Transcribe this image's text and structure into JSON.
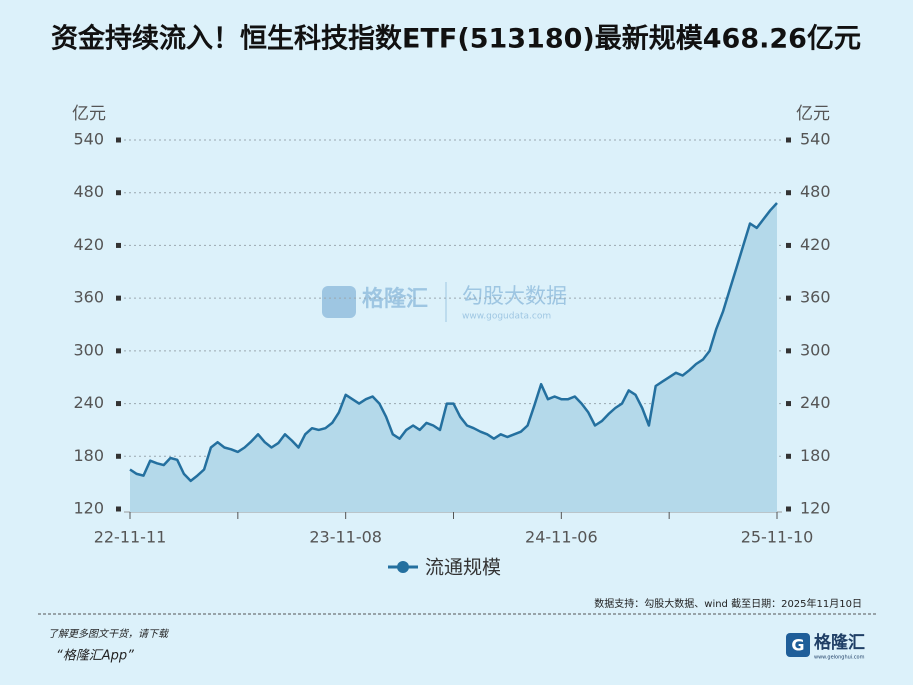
{
  "chart_data": {
    "type": "line",
    "title": "资金持续流入！恒生科技指数ETF(513180)最新规模468.26亿元",
    "y_unit": "亿元",
    "categories": [
      "22-11-11",
      null,
      null,
      null,
      null,
      null,
      null,
      null,
      null,
      null,
      null,
      null,
      null,
      null,
      null,
      null,
      null,
      null,
      null,
      null,
      null,
      null,
      null,
      null,
      null,
      null,
      null,
      null,
      null,
      null,
      null,
      null,
      "23-11-08",
      null,
      null,
      null,
      null,
      null,
      null,
      null,
      null,
      null,
      null,
      null,
      null,
      null,
      null,
      null,
      null,
      null,
      null,
      null,
      null,
      null,
      null,
      null,
      null,
      null,
      null,
      null,
      null,
      null,
      null,
      null,
      "24-11-06",
      null,
      null,
      null,
      null,
      null,
      null,
      null,
      null,
      null,
      null,
      null,
      null,
      null,
      null,
      null,
      null,
      null,
      null,
      null,
      null,
      null,
      null,
      null,
      null,
      null,
      null,
      null,
      null,
      null,
      null,
      null,
      "25-11-10"
    ],
    "series": [
      {
        "name": "流通规模",
        "color": "#24709f",
        "fill": "#b4d9ea",
        "values": [
          165,
          160,
          158,
          175,
          172,
          170,
          178,
          176,
          160,
          152,
          158,
          165,
          190,
          196,
          190,
          188,
          185,
          190,
          197,
          205,
          196,
          190,
          195,
          205,
          198,
          190,
          205,
          212,
          210,
          212,
          218,
          230,
          250,
          245,
          240,
          245,
          248,
          240,
          225,
          205,
          200,
          210,
          215,
          210,
          218,
          215,
          210,
          240,
          240,
          225,
          215,
          212,
          208,
          205,
          200,
          205,
          202,
          205,
          208,
          215,
          238,
          262,
          245,
          248,
          245,
          245,
          248,
          240,
          230,
          215,
          220,
          228,
          235,
          240,
          255,
          250,
          235,
          215,
          260,
          265,
          270,
          275,
          272,
          278,
          285,
          290,
          300,
          325,
          345,
          370,
          395,
          420,
          445,
          440,
          450,
          460,
          468.26
        ]
      }
    ],
    "ylim": [
      120,
      540
    ],
    "yticks": [
      120,
      180,
      240,
      300,
      360,
      420,
      480,
      540
    ],
    "grid": true
  },
  "watermark": {
    "brand": "格隆汇",
    "site_brand": "勾股大数据",
    "url": "www.gogudata.com"
  },
  "source": "数据支持：勾股大数据、wind  截至日期：2025年11月10日",
  "footer": {
    "promo": "了解更多图文干货，请下载",
    "app": "“格隆汇App”",
    "logo": "格隆汇",
    "logo_url": "www.gelonghui.com"
  }
}
